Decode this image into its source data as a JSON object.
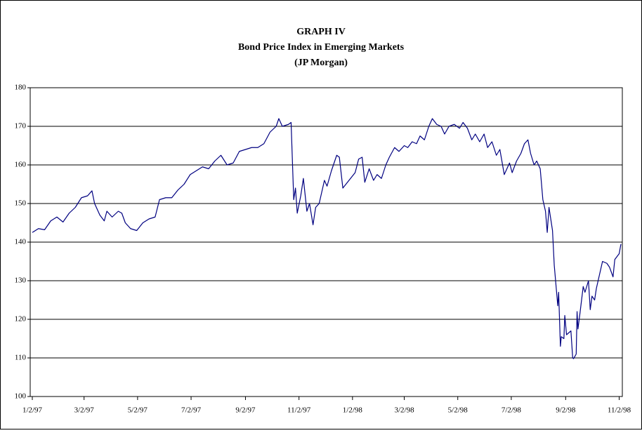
{
  "chart_data": {
    "type": "line",
    "title_lines": [
      "GRAPH IV",
      "Bond Price Index in Emerging Markets",
      "(JP Morgan)"
    ],
    "color": "#000080",
    "grid": true,
    "xlim": [
      "1/2/97",
      "11/4/98"
    ],
    "xticks": [
      "1/2/97",
      "3/2/97",
      "5/2/97",
      "7/2/97",
      "9/2/97",
      "11/2/97",
      "1/2/98",
      "3/2/98",
      "5/2/98",
      "7/2/98",
      "9/2/98",
      "11/2/98"
    ],
    "ylim": [
      100,
      180
    ],
    "yticks": [
      100,
      110,
      120,
      130,
      140,
      150,
      160,
      170,
      180
    ],
    "x": [
      "1/2/97",
      "1/9/97",
      "1/16/97",
      "1/23/97",
      "1/30/97",
      "2/6/97",
      "2/13/97",
      "2/20/97",
      "2/27/97",
      "3/6/97",
      "3/11/97",
      "3/14/97",
      "3/20/97",
      "3/25/97",
      "3/28/97",
      "4/3/97",
      "4/10/97",
      "4/14/97",
      "4/18/97",
      "4/24/97",
      "5/1/97",
      "5/8/97",
      "5/15/97",
      "5/22/97",
      "5/27/97",
      "6/3/97",
      "6/10/97",
      "6/17/97",
      "6/24/97",
      "7/1/97",
      "7/8/97",
      "7/15/97",
      "7/22/97",
      "7/29/97",
      "8/5/97",
      "8/12/97",
      "8/19/97",
      "8/26/97",
      "9/2/97",
      "9/9/97",
      "9/16/97",
      "9/23/97",
      "9/30/97",
      "10/7/97",
      "10/10/97",
      "10/14/97",
      "10/21/97",
      "10/24/97",
      "10/27/97",
      "10/29/97",
      "10/31/97",
      "11/4/97",
      "11/7/97",
      "11/11/97",
      "11/14/97",
      "11/18/97",
      "11/21/97",
      "11/25/97",
      "12/1/97",
      "12/4/97",
      "12/9/97",
      "12/15/97",
      "12/18/97",
      "12/22/97",
      "12/29/97",
      "1/5/98",
      "1/9/98",
      "1/13/98",
      "1/16/98",
      "1/21/98",
      "1/26/98",
      "1/30/98",
      "2/4/98",
      "2/9/98",
      "2/13/98",
      "2/19/98",
      "2/24/98",
      "3/2/98",
      "3/6/98",
      "3/11/98",
      "3/16/98",
      "3/20/98",
      "3/25/98",
      "3/30/98",
      "4/3/98",
      "4/8/98",
      "4/13/98",
      "4/17/98",
      "4/22/98",
      "4/28/98",
      "5/4/98",
      "5/8/98",
      "5/13/98",
      "5/18/98",
      "5/22/98",
      "5/27/98",
      "6/1/98",
      "6/5/98",
      "6/10/98",
      "6/15/98",
      "6/19/98",
      "6/24/98",
      "6/30/98",
      "7/3/98",
      "7/8/98",
      "7/13/98",
      "7/17/98",
      "7/21/98",
      "7/24/98",
      "7/28/98",
      "7/31/98",
      "8/4/98",
      "8/7/98",
      "8/10/98",
      "8/12/98",
      "8/14/98",
      "8/18/98",
      "8/20/98",
      "8/24/98",
      "8/25/98",
      "8/27/98",
      "8/28/98",
      "8/31/98",
      "9/1/98",
      "9/3/98",
      "9/8/98",
      "9/10/98",
      "9/11/98",
      "9/14/98",
      "9/15/98",
      "9/16/98",
      "9/18/98",
      "9/22/98",
      "9/24/98",
      "9/28/98",
      "9/30/98",
      "10/2/98",
      "10/5/98",
      "10/7/98",
      "10/12/98",
      "10/14/98",
      "10/19/98",
      "10/22/98",
      "10/26/98",
      "10/28/98",
      "11/2/98",
      "11/4/98"
    ],
    "values": [
      142.5,
      143.5,
      143.2,
      145.5,
      146.5,
      145.2,
      147.5,
      149,
      151.5,
      152,
      153.3,
      150,
      147,
      145.5,
      148,
      146.5,
      148,
      147.5,
      145,
      143.5,
      143,
      145,
      146,
      146.5,
      151,
      151.5,
      151.5,
      153.5,
      155,
      157.5,
      158.5,
      159.5,
      159,
      161,
      162.5,
      160,
      160.5,
      163.5,
      164,
      164.5,
      164.5,
      165.5,
      168.5,
      170,
      172,
      170,
      170.5,
      171,
      151,
      154,
      147.5,
      152,
      156.5,
      148,
      150,
      144.5,
      149,
      150,
      156,
      154.5,
      158.5,
      162.5,
      162,
      154,
      156,
      158,
      161.5,
      162,
      155.5,
      159,
      156,
      157.5,
      156.5,
      160,
      162,
      164.5,
      163.5,
      165,
      164.5,
      166,
      165.5,
      167.5,
      166.5,
      170,
      172,
      170.5,
      170,
      168,
      170,
      170.5,
      169.5,
      171,
      169.5,
      166.5,
      168,
      166,
      168,
      164.5,
      166,
      162.5,
      164,
      157.5,
      160.5,
      158,
      161,
      163,
      165.5,
      166.5,
      163,
      160,
      161,
      159,
      151,
      148,
      142.5,
      149,
      143,
      134,
      123.5,
      127,
      113,
      115.5,
      115,
      121,
      116,
      117,
      110,
      109.8,
      111,
      122,
      117.5,
      121,
      128.5,
      127,
      130,
      122.5,
      126,
      125,
      128,
      133,
      135,
      134.5,
      133.5,
      131,
      135.5,
      137,
      139.5
    ]
  }
}
